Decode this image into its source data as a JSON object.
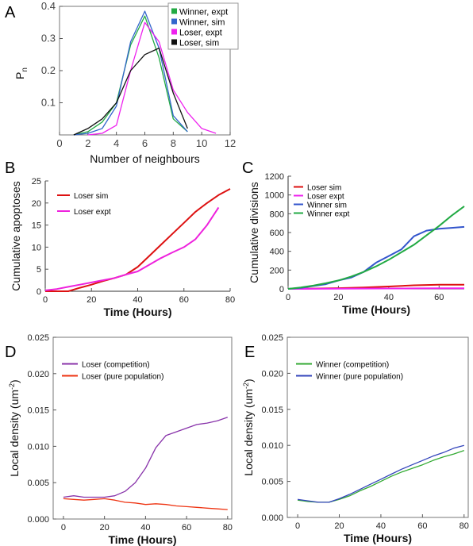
{
  "chart_data": [
    {
      "id": "A",
      "panel_label": "A",
      "type": "line",
      "xlabel": "Number of neighbours",
      "ylabel": "P",
      "ylabel_sub": "n",
      "xlim": [
        0,
        12
      ],
      "ylim": [
        0,
        0.4
      ],
      "xticks": [
        0,
        2,
        4,
        6,
        8,
        10,
        12
      ],
      "yticks": [
        0.1,
        0.2,
        0.3,
        0.4
      ],
      "ytick_labels": [
        "0.1",
        "0.2",
        "0.3",
        "0.4"
      ],
      "grid": false,
      "legend_position": "top-right",
      "series": [
        {
          "name": "Winner, expt",
          "color": "#22aa44",
          "x": [
            1,
            2,
            3,
            4,
            5,
            6,
            7,
            8,
            9
          ],
          "y": [
            0.0,
            0.01,
            0.04,
            0.1,
            0.28,
            0.37,
            0.24,
            0.05,
            0.01
          ]
        },
        {
          "name": "Winner, sim",
          "color": "#3366cc",
          "x": [
            1,
            2,
            3,
            4,
            5,
            6,
            7,
            8,
            9
          ],
          "y": [
            0.0,
            0.005,
            0.02,
            0.09,
            0.29,
            0.385,
            0.27,
            0.06,
            0.01
          ]
        },
        {
          "name": "Loser, expt",
          "color": "#ee22ee",
          "x": [
            2,
            3,
            4,
            5,
            6,
            7,
            8,
            9,
            10,
            11
          ],
          "y": [
            0.0,
            0.005,
            0.03,
            0.2,
            0.35,
            0.29,
            0.14,
            0.07,
            0.02,
            0.005
          ]
        },
        {
          "name": "Loser, sim",
          "color": "#111111",
          "x": [
            1,
            2,
            3,
            4,
            5,
            6,
            7,
            8,
            9
          ],
          "y": [
            0.0,
            0.02,
            0.05,
            0.1,
            0.2,
            0.25,
            0.27,
            0.13,
            0.02
          ]
        }
      ]
    },
    {
      "id": "B",
      "panel_label": "B",
      "type": "line",
      "xlabel": "Time (Hours)",
      "ylabel": "Cumulative apoptoses",
      "xlim": [
        0,
        80
      ],
      "ylim": [
        0,
        25
      ],
      "xticks": [
        0,
        20,
        40,
        60,
        80
      ],
      "yticks": [
        0,
        5,
        10,
        15,
        20,
        25
      ],
      "grid": false,
      "legend_position": "top-left",
      "series": [
        {
          "name": "Loser sim",
          "color": "#dd1111",
          "x": [
            0,
            5,
            10,
            15,
            20,
            25,
            30,
            35,
            40,
            45,
            50,
            55,
            60,
            65,
            70,
            75,
            80
          ],
          "y": [
            0,
            0,
            0,
            0.8,
            1.5,
            2.3,
            3.0,
            3.8,
            5.5,
            8.0,
            10.5,
            13.0,
            15.5,
            18.0,
            20.0,
            21.8,
            23.2
          ]
        },
        {
          "name": "Loser expt",
          "color": "#ee22dd",
          "x": [
            0,
            5,
            10,
            15,
            20,
            25,
            30,
            35,
            40,
            45,
            50,
            55,
            60,
            65,
            70,
            75
          ],
          "y": [
            0.2,
            0.5,
            1.0,
            1.5,
            2.0,
            2.5,
            3.0,
            3.8,
            4.5,
            6.0,
            7.5,
            8.8,
            10.0,
            11.8,
            15.0,
            19.0
          ]
        }
      ]
    },
    {
      "id": "C",
      "panel_label": "C",
      "type": "line",
      "xlabel": "Time (Hours)",
      "ylabel": "Cumulative divisions",
      "xlim": [
        0,
        70
      ],
      "ylim": [
        0,
        1200
      ],
      "xticks": [
        0,
        20,
        40,
        60
      ],
      "yticks": [
        0,
        200,
        400,
        600,
        800,
        1000,
        1200
      ],
      "grid": false,
      "legend_position": "top-left",
      "series": [
        {
          "name": "Loser sim",
          "color": "#dd1111",
          "x": [
            0,
            10,
            20,
            30,
            40,
            50,
            60,
            70
          ],
          "y": [
            0,
            3,
            8,
            15,
            25,
            38,
            45,
            45
          ]
        },
        {
          "name": "Loser expt",
          "color": "#ee22ee",
          "x": [
            0,
            10,
            20,
            30,
            40,
            50,
            60,
            70
          ],
          "y": [
            0,
            1,
            2,
            3,
            4,
            5,
            6,
            7
          ]
        },
        {
          "name": "Winner sim",
          "color": "#3355cc",
          "x": [
            0,
            5,
            10,
            15,
            20,
            25,
            30,
            35,
            40,
            45,
            50,
            55,
            60,
            65,
            70
          ],
          "y": [
            0,
            10,
            30,
            50,
            90,
            120,
            180,
            280,
            350,
            420,
            560,
            620,
            640,
            650,
            660
          ]
        },
        {
          "name": "Winner expt",
          "color": "#22aa44",
          "x": [
            0,
            5,
            10,
            15,
            20,
            25,
            30,
            35,
            40,
            45,
            50,
            55,
            60,
            65,
            70
          ],
          "y": [
            0,
            15,
            35,
            60,
            90,
            130,
            180,
            240,
            310,
            390,
            470,
            570,
            670,
            780,
            880
          ]
        }
      ]
    },
    {
      "id": "D",
      "panel_label": "D",
      "type": "line",
      "xlabel": "Time (Hours)",
      "ylabel": "Local density (um",
      "ylabel_sup": "-2",
      "ylabel_end": ")",
      "xlim": [
        -5,
        82
      ],
      "ylim": [
        0,
        0.025
      ],
      "xticks": [
        0,
        20,
        40,
        60,
        80
      ],
      "yticks": [
        0.0,
        0.005,
        0.01,
        0.015,
        0.02,
        0.025
      ],
      "ytick_labels": [
        "0.000",
        "0.005",
        "0.010",
        "0.015",
        "0.020",
        "0.025"
      ],
      "grid": false,
      "legend_position": "top-left",
      "series": [
        {
          "name": "Loser (competition)",
          "color": "#8833aa",
          "x": [
            0,
            5,
            10,
            15,
            20,
            25,
            30,
            35,
            40,
            45,
            50,
            55,
            60,
            65,
            70,
            75,
            80
          ],
          "y": [
            0.003,
            0.0032,
            0.003,
            0.003,
            0.003,
            0.0032,
            0.0038,
            0.005,
            0.007,
            0.0098,
            0.0115,
            0.012,
            0.0125,
            0.013,
            0.0132,
            0.0135,
            0.014
          ]
        },
        {
          "name": "Loser (pure population)",
          "color": "#ee3311",
          "x": [
            0,
            5,
            10,
            15,
            20,
            25,
            30,
            35,
            40,
            45,
            50,
            55,
            60,
            65,
            70,
            75,
            80
          ],
          "y": [
            0.0028,
            0.0027,
            0.0026,
            0.0027,
            0.0028,
            0.0026,
            0.0023,
            0.0022,
            0.002,
            0.0021,
            0.002,
            0.0018,
            0.0017,
            0.0016,
            0.0015,
            0.0014,
            0.0013
          ]
        }
      ]
    },
    {
      "id": "E",
      "panel_label": "E",
      "type": "line",
      "xlabel": "Time (Hours)",
      "ylabel": "Local density (um",
      "ylabel_sup": "-2",
      "ylabel_end": ")",
      "xlim": [
        -5,
        82
      ],
      "ylim": [
        0,
        0.025
      ],
      "xticks": [
        0,
        20,
        40,
        60,
        80
      ],
      "yticks": [
        0.0,
        0.005,
        0.01,
        0.015,
        0.02,
        0.025
      ],
      "ytick_labels": [
        "0.000",
        "0.005",
        "0.010",
        "0.015",
        "0.020",
        "0.025"
      ],
      "grid": false,
      "legend_position": "top-left",
      "series": [
        {
          "name": "Winner (competition)",
          "color": "#33aa33",
          "x": [
            0,
            5,
            10,
            15,
            20,
            25,
            30,
            35,
            40,
            45,
            50,
            55,
            60,
            65,
            70,
            75,
            80
          ],
          "y": [
            0.0024,
            0.0022,
            0.0021,
            0.0021,
            0.0025,
            0.003,
            0.0037,
            0.0043,
            0.005,
            0.0057,
            0.0063,
            0.0068,
            0.0073,
            0.0079,
            0.0084,
            0.0088,
            0.0093
          ]
        },
        {
          "name": "Winner (pure population)",
          "color": "#3344bb",
          "x": [
            0,
            5,
            10,
            15,
            20,
            25,
            30,
            35,
            40,
            45,
            50,
            55,
            60,
            65,
            70,
            75,
            80
          ],
          "y": [
            0.0025,
            0.0023,
            0.0021,
            0.0021,
            0.0026,
            0.0032,
            0.0039,
            0.0046,
            0.0053,
            0.006,
            0.0067,
            0.0073,
            0.0079,
            0.0085,
            0.009,
            0.0096,
            0.01
          ]
        }
      ]
    }
  ]
}
